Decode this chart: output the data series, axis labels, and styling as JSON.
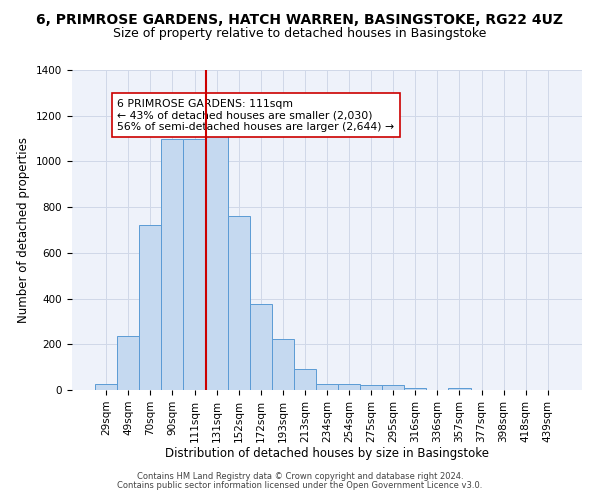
{
  "title": "6, PRIMROSE GARDENS, HATCH WARREN, BASINGSTOKE, RG22 4UZ",
  "subtitle": "Size of property relative to detached houses in Basingstoke",
  "xlabel": "Distribution of detached houses by size in Basingstoke",
  "ylabel": "Number of detached properties",
  "bar_labels": [
    "29sqm",
    "49sqm",
    "70sqm",
    "90sqm",
    "111sqm",
    "131sqm",
    "152sqm",
    "172sqm",
    "193sqm",
    "213sqm",
    "234sqm",
    "254sqm",
    "275sqm",
    "295sqm",
    "316sqm",
    "336sqm",
    "357sqm",
    "377sqm",
    "398sqm",
    "418sqm",
    "439sqm"
  ],
  "bar_values": [
    28,
    235,
    720,
    1100,
    1100,
    1115,
    760,
    375,
    225,
    90,
    28,
    28,
    20,
    20,
    8,
    0,
    8,
    0,
    0,
    0,
    0
  ],
  "bar_color": "#c5d9f0",
  "bar_edge_color": "#5b9bd5",
  "vline_x": 4.5,
  "vline_color": "#cc0000",
  "ylim": [
    0,
    1400
  ],
  "yticks": [
    0,
    200,
    400,
    600,
    800,
    1000,
    1200,
    1400
  ],
  "annotation_text": "6 PRIMROSE GARDENS: 111sqm\n← 43% of detached houses are smaller (2,030)\n56% of semi-detached houses are larger (2,644) →",
  "annotation_box_color": "#ffffff",
  "annotation_box_edge": "#cc0000",
  "footer_line1": "Contains HM Land Registry data © Crown copyright and database right 2024.",
  "footer_line2": "Contains public sector information licensed under the Open Government Licence v3.0.",
  "title_fontsize": 10,
  "subtitle_fontsize": 9,
  "axis_label_fontsize": 8.5,
  "tick_fontsize": 7.5,
  "footer_fontsize": 6.0
}
